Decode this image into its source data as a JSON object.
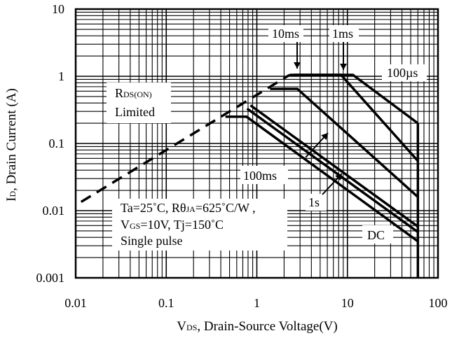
{
  "chart_data": {
    "type": "line",
    "title": "",
    "x_scale": "log",
    "y_scale": "log",
    "xlim": [
      0.01,
      100
    ],
    "ylim": [
      0.001,
      10
    ],
    "grid": true,
    "x_ticks": [
      {
        "value": 0.01,
        "label": "0.01"
      },
      {
        "value": 0.1,
        "label": "0.1"
      },
      {
        "value": 1,
        "label": "1"
      },
      {
        "value": 10,
        "label": "10"
      },
      {
        "value": 100,
        "label": "100"
      }
    ],
    "y_ticks": [
      {
        "value": 0.001,
        "label": "0.001"
      },
      {
        "value": 0.01,
        "label": "0.01"
      },
      {
        "value": 0.1,
        "label": "0.1"
      },
      {
        "value": 1,
        "label": "1"
      },
      {
        "value": 10,
        "label": "10"
      }
    ],
    "xlabel": {
      "main": "V",
      "sub": "DS",
      "rest": ", Drain-Source Voltage(V)"
    },
    "ylabel": {
      "main": "I",
      "sub": "D",
      "rest": ", Drain Current (A)"
    },
    "rds_limit": {
      "label_line1_main": "R",
      "label_line1_sub": "DS(ON)",
      "label_line2": "Limited",
      "points": [
        [
          0.0115,
          0.0135
        ],
        [
          2.3,
          1.05
        ]
      ]
    },
    "series": [
      {
        "name": "100µs",
        "points": [
          [
            2.3,
            1.05
          ],
          [
            11.5,
            1.05
          ],
          [
            60,
            0.2
          ]
        ]
      },
      {
        "name": "1ms",
        "points": [
          [
            2.6,
            1.05
          ],
          [
            8.5,
            1.05
          ],
          [
            60,
            0.055
          ]
        ]
      },
      {
        "name": "10ms",
        "points": [
          [
            1.4,
            0.65
          ],
          [
            2.8,
            0.65
          ],
          [
            60,
            0.016
          ]
        ]
      },
      {
        "name": "100ms",
        "points": [
          [
            0.85,
            0.37
          ],
          [
            60,
            0.0058
          ]
        ]
      },
      {
        "name": "1s",
        "points": [
          [
            0.78,
            0.33
          ],
          [
            60,
            0.0048
          ]
        ]
      },
      {
        "name": "DC",
        "points": [
          [
            0.45,
            0.25
          ],
          [
            0.77,
            0.25
          ],
          [
            60,
            0.0035
          ]
        ]
      }
    ],
    "voltage_limit": {
      "x": 60
    },
    "annotations": {
      "ms10": "10ms",
      "ms1": "1ms",
      "us100": "100µs",
      "ms100": "100ms",
      "s1": "1s",
      "dc": "DC",
      "conditions": {
        "line1_a": "Ta=25˚C, R",
        "line1_theta": "θ",
        "line1_sub": "JA",
        "line1_b": "=625˚C/W ,",
        "line2_main": "V",
        "line2_sub": "GS",
        "line2_b": "=10V, Tj=150˚C",
        "line3": "Single pulse"
      }
    }
  }
}
